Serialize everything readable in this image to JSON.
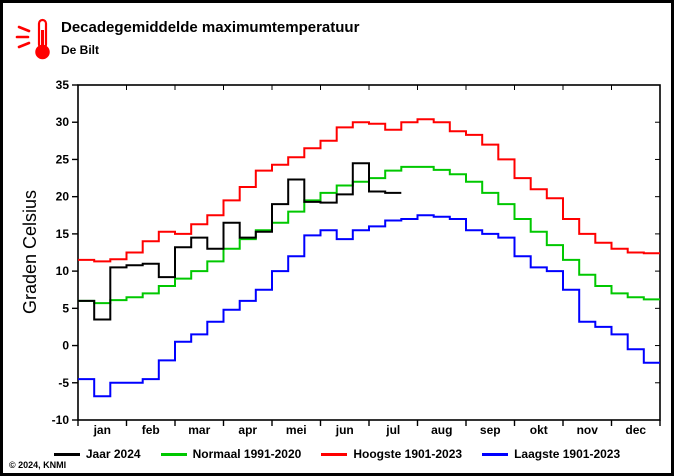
{
  "header": {
    "title": "Decadegemiddelde maximumtemperatuur",
    "subtitle": "De Bilt"
  },
  "footer": {
    "copyright": "© 2024, KNMI"
  },
  "chart_data": {
    "type": "line",
    "style": "step",
    "title": "Decadegemiddelde maximumtemperatuur",
    "subtitle": "De Bilt",
    "ylabel": "Graden Celsius",
    "ylim": [
      -10,
      35
    ],
    "ytick_step": 5,
    "grid": false,
    "legend_position": "bottom",
    "months": [
      "jan",
      "feb",
      "mar",
      "apr",
      "mei",
      "jun",
      "jul",
      "aug",
      "sep",
      "okt",
      "nov",
      "dec"
    ],
    "decades_per_month": 3,
    "series": [
      {
        "name": "Jaar 2024",
        "color": "#000000",
        "values": [
          6.0,
          3.5,
          10.5,
          10.8,
          11.0,
          9.2,
          13.2,
          14.5,
          13.0,
          16.5,
          14.5,
          15.3,
          19.0,
          22.3,
          19.3,
          19.2,
          20.3,
          24.5,
          20.7,
          20.5
        ]
      },
      {
        "name": "Normaal 1991-2020",
        "color": "#00c800",
        "values": [
          6.0,
          5.7,
          6.1,
          6.5,
          7.0,
          8.0,
          9.0,
          10.0,
          11.3,
          13.0,
          14.3,
          15.5,
          16.5,
          18.0,
          19.5,
          20.5,
          21.5,
          22.0,
          22.5,
          23.5,
          24.0,
          24.0,
          23.6,
          23.0,
          22.0,
          20.5,
          19.0,
          17.0,
          15.3,
          13.5,
          11.5,
          9.5,
          8.0,
          7.0,
          6.5,
          6.2
        ]
      },
      {
        "name": "Hoogste 1901-2023",
        "color": "#ff0000",
        "values": [
          11.5,
          11.3,
          11.6,
          12.5,
          14.0,
          15.3,
          15.0,
          16.3,
          17.5,
          19.5,
          21.3,
          23.5,
          24.3,
          25.3,
          26.5,
          27.5,
          29.3,
          30.0,
          29.8,
          29.0,
          30.0,
          30.4,
          30.0,
          28.8,
          28.3,
          27.0,
          25.0,
          22.5,
          21.0,
          19.8,
          17.0,
          15.0,
          13.8,
          13.0,
          12.5,
          12.4
        ]
      },
      {
        "name": "Laagste 1901-2023",
        "color": "#0000ff",
        "values": [
          -4.5,
          -6.8,
          -5.0,
          -5.0,
          -4.5,
          -2.0,
          0.5,
          1.5,
          3.2,
          4.8,
          6.0,
          7.5,
          10.0,
          12.0,
          14.8,
          15.5,
          14.3,
          15.5,
          16.0,
          16.8,
          17.0,
          17.5,
          17.3,
          17.0,
          15.5,
          15.0,
          14.5,
          12.0,
          10.5,
          10.0,
          7.5,
          3.2,
          2.5,
          1.5,
          -0.5,
          -2.3
        ]
      }
    ]
  }
}
